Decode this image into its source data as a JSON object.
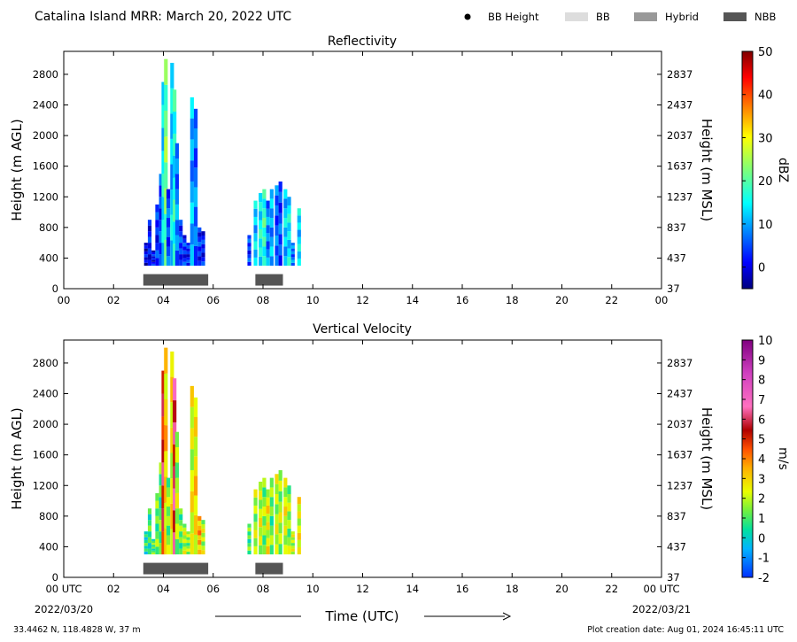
{
  "header": {
    "title": "Catalina Island MRR:  March 20, 2022 UTC",
    "legend": [
      {
        "label": "BB Height",
        "color": "#000000",
        "kind": "dot"
      },
      {
        "label": "BB",
        "color": "#dddddd",
        "kind": "box"
      },
      {
        "label": "Hybrid",
        "color": "#999999",
        "kind": "box"
      },
      {
        "label": "NBB",
        "color": "#555555",
        "kind": "box"
      }
    ]
  },
  "footer": {
    "location": "33.4462 N, 118.4828 W, 37 m",
    "creation": "Plot creation date: Aug 01, 2024 16:45:11 UTC",
    "xlabel": "Time (UTC)",
    "start_date": "2022/03/20",
    "end_date": "2022/03/21"
  },
  "chart_data": [
    {
      "type": "heatmap",
      "title": "Reflectivity",
      "xlabel": "",
      "ylabel": "Height (m AGL)",
      "y2label": "Height (m MSL)",
      "xlim": [
        0,
        24
      ],
      "ylim": [
        0,
        3100
      ],
      "xticks": [
        "00",
        "02",
        "04",
        "06",
        "08",
        "10",
        "12",
        "14",
        "16",
        "18",
        "20",
        "22",
        "00"
      ],
      "yticks": [
        0,
        400,
        800,
        1200,
        1600,
        2000,
        2400,
        2800
      ],
      "y2ticks": [
        "37",
        "437",
        "837",
        "1237",
        "1637",
        "2037",
        "2437",
        "2837"
      ],
      "colorbar": {
        "label": "dBZ",
        "min": -5,
        "max": 50,
        "ticks": [
          0,
          10,
          20,
          30,
          40,
          50
        ],
        "colormap": "jet"
      },
      "nbb_segments": [
        [
          3.3,
          5.8
        ],
        [
          7.8,
          8.8
        ]
      ],
      "columns": [
        {
          "t": 3.3,
          "top": 600,
          "v": 0
        },
        {
          "t": 3.45,
          "top": 900,
          "v": 2
        },
        {
          "t": 3.6,
          "top": 500,
          "v": 1
        },
        {
          "t": 3.75,
          "top": 1100,
          "v": 3
        },
        {
          "t": 3.9,
          "top": 1500,
          "v": 4
        },
        {
          "t": 4.0,
          "top": 2700,
          "v": 14
        },
        {
          "t": 4.1,
          "top": 3000,
          "v": 22
        },
        {
          "t": 4.2,
          "top": 1300,
          "v": 5
        },
        {
          "t": 4.35,
          "top": 2950,
          "v": 12
        },
        {
          "t": 4.45,
          "top": 2600,
          "v": 16
        },
        {
          "t": 4.55,
          "top": 1900,
          "v": 8
        },
        {
          "t": 4.7,
          "top": 900,
          "v": 4
        },
        {
          "t": 4.85,
          "top": 700,
          "v": 3
        },
        {
          "t": 5.0,
          "top": 600,
          "v": 2
        },
        {
          "t": 5.15,
          "top": 2500,
          "v": 10
        },
        {
          "t": 5.3,
          "top": 2350,
          "v": 7
        },
        {
          "t": 5.45,
          "top": 800,
          "v": 3
        },
        {
          "t": 5.6,
          "top": 750,
          "v": 2
        },
        {
          "t": 7.45,
          "top": 700,
          "v": 4
        },
        {
          "t": 7.7,
          "top": 1150,
          "v": 12
        },
        {
          "t": 7.9,
          "top": 1250,
          "v": 15
        },
        {
          "t": 8.05,
          "top": 1300,
          "v": 18
        },
        {
          "t": 8.2,
          "top": 1150,
          "v": 8
        },
        {
          "t": 8.35,
          "top": 1300,
          "v": 10
        },
        {
          "t": 8.55,
          "top": 1350,
          "v": 6
        },
        {
          "t": 8.7,
          "top": 1400,
          "v": 5
        },
        {
          "t": 8.9,
          "top": 1300,
          "v": 12
        },
        {
          "t": 9.05,
          "top": 1200,
          "v": 14
        },
        {
          "t": 9.2,
          "top": 600,
          "v": 7
        },
        {
          "t": 9.45,
          "top": 1050,
          "v": 13
        }
      ]
    },
    {
      "type": "heatmap",
      "title": "Vertical Velocity",
      "xlabel": "Time (UTC)",
      "ylabel": "Height (m AGL)",
      "y2label": "Height (m MSL)",
      "xlim": [
        0,
        24
      ],
      "ylim": [
        0,
        3100
      ],
      "xticks": [
        "00 UTC",
        "02",
        "04",
        "06",
        "08",
        "10",
        "12",
        "14",
        "16",
        "18",
        "20",
        "22",
        "00 UTC"
      ],
      "yticks": [
        0,
        400,
        800,
        1200,
        1600,
        2000,
        2400,
        2800
      ],
      "y2ticks": [
        "37",
        "437",
        "837",
        "1237",
        "1637",
        "2037",
        "2437",
        "2837"
      ],
      "colorbar": {
        "label": "m/s",
        "min": -2,
        "max": 10,
        "ticks": [
          -2,
          -1,
          0,
          1,
          2,
          3,
          4,
          5,
          6,
          7,
          8,
          9,
          10
        ],
        "colormap": "velocity"
      },
      "nbb_segments": [
        [
          3.3,
          5.8
        ],
        [
          7.8,
          8.8
        ]
      ],
      "columns": [
        {
          "t": 3.3,
          "top": 600,
          "v": 0.5
        },
        {
          "t": 3.45,
          "top": 900,
          "v": 0.8
        },
        {
          "t": 3.6,
          "top": 500,
          "v": 1.0
        },
        {
          "t": 3.75,
          "top": 1100,
          "v": 1.2
        },
        {
          "t": 3.9,
          "top": 1500,
          "v": 1.0
        },
        {
          "t": 4.0,
          "top": 2700,
          "v": 5.5
        },
        {
          "t": 4.1,
          "top": 3000,
          "v": 3.0
        },
        {
          "t": 4.2,
          "top": 1300,
          "v": 1.5
        },
        {
          "t": 4.35,
          "top": 2950,
          "v": 2.5
        },
        {
          "t": 4.45,
          "top": 2600,
          "v": 6.0
        },
        {
          "t": 4.55,
          "top": 1900,
          "v": 1.8
        },
        {
          "t": 4.7,
          "top": 900,
          "v": 1.2
        },
        {
          "t": 4.85,
          "top": 700,
          "v": 2.0
        },
        {
          "t": 5.0,
          "top": 600,
          "v": 1.5
        },
        {
          "t": 5.15,
          "top": 2500,
          "v": 2.3
        },
        {
          "t": 5.3,
          "top": 2350,
          "v": 2.8
        },
        {
          "t": 5.45,
          "top": 800,
          "v": 3.5
        },
        {
          "t": 5.6,
          "top": 750,
          "v": 2.0
        },
        {
          "t": 7.45,
          "top": 700,
          "v": 1.0
        },
        {
          "t": 7.7,
          "top": 1150,
          "v": 1.8
        },
        {
          "t": 7.9,
          "top": 1250,
          "v": 2.2
        },
        {
          "t": 8.05,
          "top": 1300,
          "v": 1.5
        },
        {
          "t": 8.2,
          "top": 1150,
          "v": 2.5
        },
        {
          "t": 8.35,
          "top": 1300,
          "v": 1.2
        },
        {
          "t": 8.55,
          "top": 1350,
          "v": 2.0
        },
        {
          "t": 8.7,
          "top": 1400,
          "v": 1.8
        },
        {
          "t": 8.9,
          "top": 1300,
          "v": 2.3
        },
        {
          "t": 9.05,
          "top": 1200,
          "v": 1.6
        },
        {
          "t": 9.2,
          "top": 600,
          "v": 2.0
        },
        {
          "t": 9.45,
          "top": 1050,
          "v": 2.4
        }
      ]
    }
  ]
}
